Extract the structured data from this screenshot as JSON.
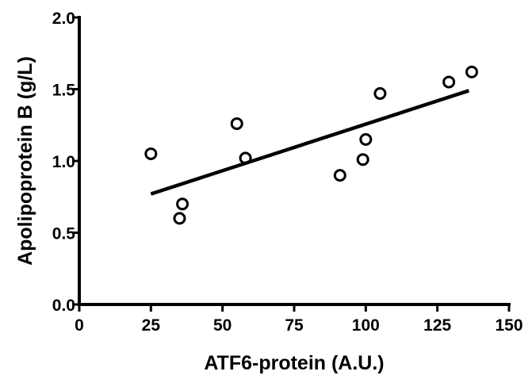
{
  "chart_data": {
    "type": "scatter",
    "xlabel": "ATF6-protein (A.U.)",
    "ylabel": "Apolipoprotein B (g/L)",
    "xlim": [
      0,
      150
    ],
    "ylim": [
      0,
      2.0
    ],
    "x_ticks": [
      "0",
      "25",
      "50",
      "75",
      "100",
      "125",
      "150"
    ],
    "y_ticks": [
      "0.0",
      "0.5",
      "1.0",
      "1.5",
      "2.0"
    ],
    "x_tick_values": [
      0,
      25,
      50,
      75,
      100,
      125,
      150
    ],
    "y_tick_values": [
      0,
      0.5,
      1.0,
      1.5,
      2.0
    ],
    "grid": false,
    "marker": "open-circle",
    "points": [
      {
        "x": 25,
        "y": 1.05
      },
      {
        "x": 35,
        "y": 0.6
      },
      {
        "x": 36,
        "y": 0.7
      },
      {
        "x": 55,
        "y": 1.26
      },
      {
        "x": 58,
        "y": 1.02
      },
      {
        "x": 91,
        "y": 0.9
      },
      {
        "x": 99,
        "y": 1.01
      },
      {
        "x": 100,
        "y": 1.15
      },
      {
        "x": 105,
        "y": 1.47
      },
      {
        "x": 129,
        "y": 1.55
      },
      {
        "x": 137,
        "y": 1.62
      }
    ],
    "fit_line": {
      "x": [
        25,
        136
      ],
      "y": [
        0.77,
        1.49
      ]
    }
  }
}
